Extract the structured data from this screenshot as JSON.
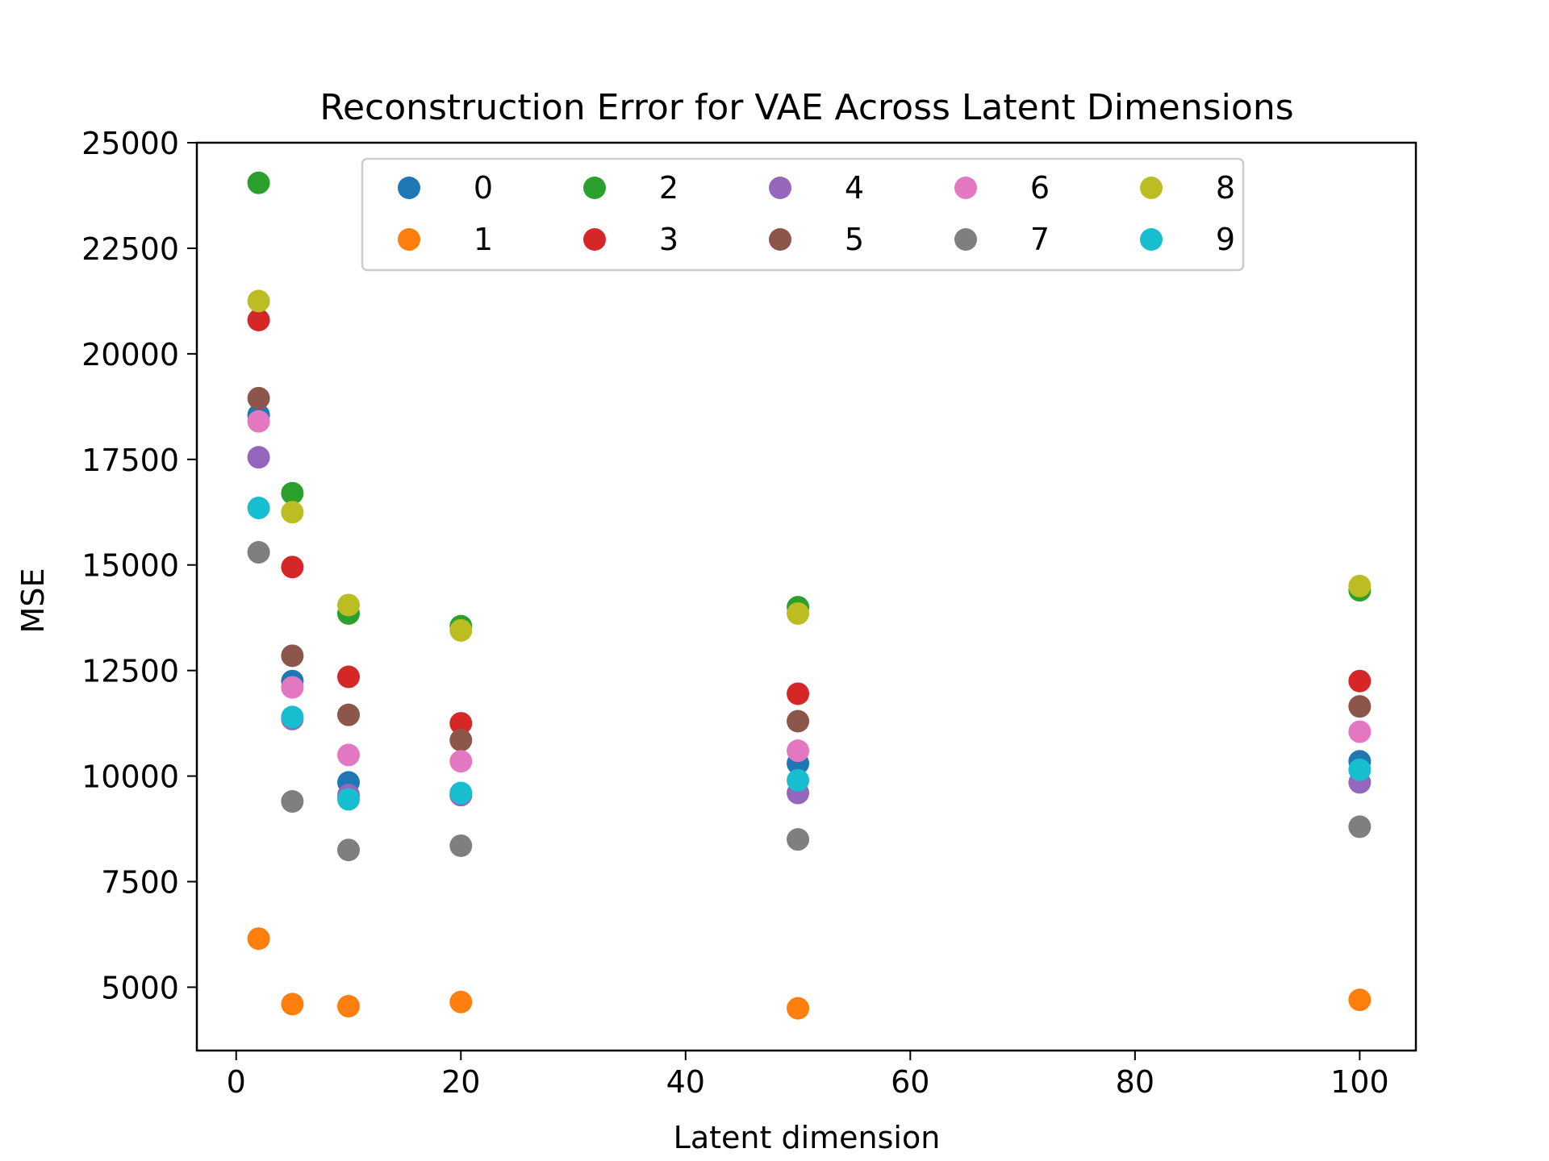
{
  "chart_data": {
    "type": "scatter",
    "title": "Reconstruction Error for VAE Across Latent Dimensions",
    "xlabel": "Latent dimension",
    "ylabel": "MSE",
    "xlim": [
      -3.5,
      105
    ],
    "ylim": [
      3500,
      25000
    ],
    "xticks": [
      0,
      20,
      40,
      60,
      80,
      100
    ],
    "yticks": [
      5000,
      7500,
      10000,
      12500,
      15000,
      17500,
      20000,
      22500,
      25000
    ],
    "grid": false,
    "legend": {
      "placement": "top-center",
      "columns": 5
    },
    "x": [
      2,
      5,
      10,
      20,
      50,
      100
    ],
    "series": [
      {
        "name": "0",
        "color": "#1f77b4",
        "values": [
          18550,
          12250,
          9850,
          9550,
          10300,
          10350
        ]
      },
      {
        "name": "1",
        "color": "#ff7f0e",
        "values": [
          6150,
          4600,
          4550,
          4650,
          4500,
          4700
        ]
      },
      {
        "name": "2",
        "color": "#2ca02c",
        "values": [
          24050,
          16700,
          13850,
          13550,
          14000,
          14400
        ]
      },
      {
        "name": "3",
        "color": "#d62728",
        "values": [
          20800,
          14950,
          12350,
          11250,
          11950,
          12250
        ]
      },
      {
        "name": "4",
        "color": "#9467bd",
        "values": [
          17550,
          11350,
          9550,
          9550,
          9600,
          9850
        ]
      },
      {
        "name": "5",
        "color": "#8c564b",
        "values": [
          18950,
          12850,
          11450,
          10850,
          11300,
          11650
        ]
      },
      {
        "name": "6",
        "color": "#e377c2",
        "values": [
          18400,
          12100,
          10500,
          10350,
          10600,
          11050
        ]
      },
      {
        "name": "7",
        "color": "#7f7f7f",
        "values": [
          15300,
          9400,
          8250,
          8350,
          8500,
          8800
        ]
      },
      {
        "name": "8",
        "color": "#bcbd22",
        "values": [
          21250,
          16250,
          14050,
          13450,
          13850,
          14500
        ]
      },
      {
        "name": "9",
        "color": "#17becf",
        "values": [
          16350,
          11400,
          9450,
          9600,
          9900,
          10150
        ]
      }
    ]
  }
}
